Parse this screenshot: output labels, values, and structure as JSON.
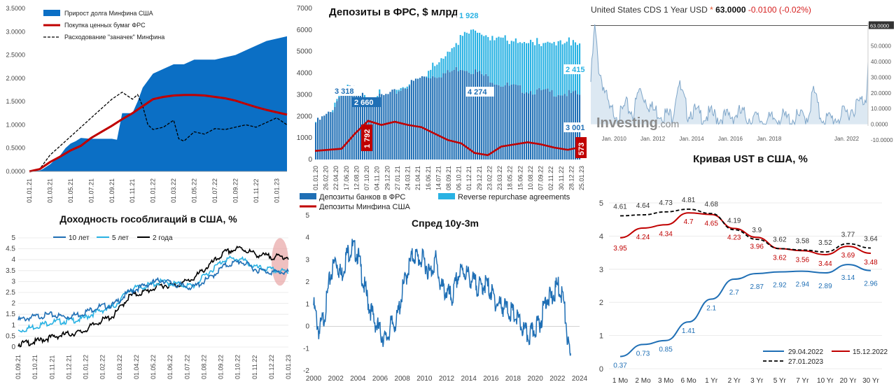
{
  "chart_data": [
    {
      "id": "mof_debt",
      "type": "area",
      "title": "",
      "ylim": [
        0,
        3.5
      ],
      "y_ticks": [
        "0.0000",
        "0.5000",
        "1.0000",
        "1.5000",
        "2.0000",
        "2.5000",
        "3.0000",
        "3.5000"
      ],
      "x_ticks": [
        "01.01.21",
        "01.03.21",
        "01.05.21",
        "01.07.21",
        "01.09.21",
        "01.11.21",
        "01.01.22",
        "01.03.22",
        "01.05.22",
        "01.07.22",
        "01.09.22",
        "01.11.22",
        "01.01.23"
      ],
      "legend": {
        "position": "top-left"
      },
      "colors": {
        "debt": "#0b6fc5",
        "fed": "#c00000",
        "drawdown": "#000000"
      },
      "series": [
        {
          "name": "Прирост долга Минфина США",
          "kind": "area",
          "x": [
            0,
            1,
            1.3,
            2,
            2.5,
            3,
            3.5,
            4,
            4.5,
            5,
            6,
            7,
            8,
            8.5,
            9,
            10,
            10.5,
            11,
            12,
            13,
            14,
            15,
            16,
            17,
            18,
            19,
            20,
            21,
            22,
            23,
            24,
            25
          ],
          "values": [
            0,
            0.02,
            0.05,
            0.15,
            0.25,
            0.35,
            0.5,
            0.6,
            0.65,
            0.72,
            0.7,
            0.7,
            0.7,
            0.68,
            1.25,
            1.25,
            1.5,
            1.8,
            2.1,
            2.2,
            2.3,
            2.3,
            2.4,
            2.4,
            2.4,
            2.45,
            2.5,
            2.6,
            2.7,
            2.8,
            2.85,
            2.9
          ]
        },
        {
          "name": "Покупка ценных бумаг ФРС",
          "kind": "line",
          "x": [
            0,
            1,
            2,
            3,
            4,
            5,
            6,
            7,
            8,
            9,
            10,
            11,
            12,
            13,
            14,
            15,
            16,
            17,
            18,
            19,
            20,
            21,
            22,
            23,
            24,
            25
          ],
          "values": [
            0,
            0.05,
            0.2,
            0.32,
            0.45,
            0.55,
            0.72,
            0.85,
            0.98,
            1.12,
            1.25,
            1.4,
            1.55,
            1.6,
            1.63,
            1.64,
            1.64,
            1.63,
            1.6,
            1.57,
            1.52,
            1.45,
            1.38,
            1.32,
            1.27,
            1.22
          ]
        },
        {
          "name": "Расходование \"заначек\" Минфина",
          "kind": "dashed",
          "x": [
            0,
            1,
            2,
            3,
            4,
            5,
            6,
            7,
            8,
            9,
            10,
            10.5,
            11,
            11.5,
            12,
            13,
            14,
            14.5,
            15,
            16,
            17,
            18,
            19,
            20,
            21,
            22,
            23,
            24,
            25
          ],
          "values": [
            0,
            0.05,
            0.35,
            0.55,
            0.75,
            0.95,
            1.15,
            1.35,
            1.55,
            1.7,
            1.55,
            1.65,
            1.4,
            1.0,
            0.9,
            0.95,
            1.1,
            0.7,
            0.65,
            0.85,
            0.8,
            0.92,
            0.9,
            0.95,
            1.0,
            0.95,
            1.05,
            1.15,
            1.0
          ]
        }
      ]
    },
    {
      "id": "fed_deposits",
      "type": "bar",
      "title": "Депозиты в ФРС, $ млрд",
      "ylim": [
        0,
        7000
      ],
      "y_ticks": [
        "0",
        "1000",
        "2000",
        "3000",
        "4000",
        "5000",
        "6000",
        "7000"
      ],
      "x_ticks": [
        "01.01.20",
        "26.02.20",
        "22.04.20",
        "17.06.20",
        "12.08.20",
        "07.10.20",
        "04.11.20",
        "29.12.20",
        "27.01.21",
        "24.03.21",
        "21.04.21",
        "16.06.21",
        "14.07.21",
        "08.09.21",
        "06.10.21",
        "01.12.21",
        "29.12.21",
        "23.02.22",
        "23.03.22",
        "18.05.22",
        "15.06.22",
        "10.08.22",
        "07.09.22",
        "02.11.22",
        "30.11.22",
        "28.12.22",
        "25.01.23"
      ],
      "labels": [
        "3 318",
        "2 660",
        "1 928",
        "4 274",
        "2 415",
        "3 001",
        "1 792",
        "573"
      ],
      "colors": {
        "banks": "#1f6fb5",
        "rrp": "#29b2e3",
        "treasury": "#c00000"
      },
      "series": [
        {
          "name": "Депозиты банков в ФРС",
          "x": [
            0,
            0.06,
            0.1,
            0.15,
            0.2,
            0.3,
            0.4,
            0.5,
            0.55,
            0.6,
            0.7,
            0.8,
            0.9,
            1
          ],
          "values": [
            1700,
            2200,
            3200,
            3300,
            2700,
            3100,
            3800,
            4000,
            4274,
            4100,
            3500,
            3200,
            3100,
            3001
          ]
        },
        {
          "name": "Reverse repurchase agreements",
          "x": [
            0,
            0.3,
            0.4,
            0.45,
            0.5,
            0.55,
            0.6,
            0.65,
            0.7,
            0.8,
            0.9,
            1
          ],
          "values": [
            0,
            0,
            50,
            500,
            1000,
            1500,
            2000,
            1928,
            2100,
            2200,
            2300,
            2415
          ]
        },
        {
          "name": "Депозиты Минфина США",
          "x": [
            0,
            0.1,
            0.15,
            0.2,
            0.25,
            0.3,
            0.35,
            0.4,
            0.45,
            0.5,
            0.55,
            0.6,
            0.65,
            0.7,
            0.75,
            0.8,
            0.85,
            0.9,
            0.95,
            1
          ],
          "values": [
            400,
            500,
            1200,
            1792,
            1600,
            1750,
            1600,
            1500,
            1200,
            900,
            750,
            300,
            200,
            600,
            700,
            800,
            700,
            550,
            450,
            573
          ]
        }
      ]
    },
    {
      "id": "cds",
      "type": "line",
      "title": "United States CDS 1 Year USD",
      "header": {
        "name": "United States CDS 1 Year USD",
        "star": "*",
        "price": "63.0000",
        "change": "-0.0100",
        "change_pct": "(-0.02%)"
      },
      "brand": {
        "word": "Investing",
        "suffix": ".com"
      },
      "ylim": [
        -10,
        65
      ],
      "y_ticks": [
        "50.0000",
        "40.0000",
        "30.0000",
        "20.0000",
        "10.0000",
        "0.0000",
        "-10.0000"
      ],
      "last_value_label": "63.0000",
      "x_ticks": [
        "Jan. 2010",
        "Jan. 2012",
        "Jan. 2014",
        "Jan. 2016",
        "Jan. 2018",
        "Jan. 2022"
      ],
      "colors": {
        "line": "#7fa6c9",
        "fill": "#dce8f2"
      },
      "series": [
        {
          "name": "",
          "x": [
            2008.8,
            2009,
            2009.2,
            2009.5,
            2009.8,
            2010,
            2010.3,
            2010.6,
            2011,
            2011.3,
            2011.7,
            2012,
            2012.5,
            2013,
            2013.3,
            2013.8,
            2014,
            2014.5,
            2015,
            2015.5,
            2016,
            2016.5,
            2017,
            2017.5,
            2018,
            2018.5,
            2019,
            2019.5,
            2020,
            2020.3,
            2020.6,
            2021,
            2021.5,
            2022,
            2022.5,
            2023,
            2023.1
          ],
          "values": [
            30,
            65,
            40,
            25,
            10,
            12,
            8,
            15,
            10,
            25,
            18,
            12,
            10,
            8,
            30,
            10,
            12,
            8,
            9,
            7,
            8,
            10,
            7,
            6,
            5,
            8,
            6,
            7,
            8,
            25,
            9,
            6,
            7,
            10,
            15,
            20,
            40
          ]
        }
      ]
    },
    {
      "id": "govt_yields",
      "type": "line",
      "title": "Доходность гособлигаций в США, %",
      "ylim": [
        0,
        5
      ],
      "y_ticks": [
        "0",
        "0.5",
        "1",
        "1.5",
        "2",
        "2.5",
        "3",
        "3.5",
        "4",
        "4.5",
        "5"
      ],
      "x_ticks": [
        "01.09.21",
        "01.10.21",
        "01.11.21",
        "01.12.21",
        "01.01.22",
        "01.02.22",
        "01.03.22",
        "01.04.22",
        "01.05.22",
        "01.06.22",
        "01.07.22",
        "01.08.22",
        "01.09.22",
        "01.10.22",
        "01.11.22",
        "01.12.22",
        "01.01.23"
      ],
      "legend": {
        "position": "top"
      },
      "colors": {
        "y10": "#1f6fb5",
        "y5": "#29b2e3",
        "y2": "#000000"
      },
      "series": [
        {
          "name": "10 лет",
          "x": [
            0,
            1,
            2,
            3,
            4,
            5,
            6,
            7,
            8,
            9,
            10,
            11,
            12,
            13,
            14,
            15,
            16,
            17
          ],
          "values": [
            1.3,
            1.45,
            1.55,
            1.45,
            1.6,
            1.9,
            2.0,
            2.6,
            2.9,
            3.15,
            2.9,
            2.8,
            3.2,
            3.8,
            4.0,
            3.6,
            3.5,
            3.5
          ]
        },
        {
          "name": "5 лет",
          "x": [
            0,
            1,
            2,
            3,
            4,
            5,
            6,
            7,
            8,
            9,
            10,
            11,
            12,
            13,
            14,
            15,
            16,
            17
          ],
          "values": [
            0.8,
            1.0,
            1.2,
            1.25,
            1.35,
            1.7,
            1.9,
            2.7,
            2.85,
            3.05,
            2.95,
            2.85,
            3.5,
            4.1,
            4.1,
            3.7,
            3.6,
            3.5
          ]
        },
        {
          "name": "2 года",
          "x": [
            0,
            1,
            2,
            3,
            4,
            5,
            6,
            7,
            8,
            9,
            10,
            11,
            12,
            13,
            14,
            15,
            16,
            17
          ],
          "values": [
            0.2,
            0.3,
            0.5,
            0.65,
            0.75,
            1.2,
            1.5,
            2.4,
            2.6,
            2.9,
            2.9,
            3.2,
            3.8,
            4.4,
            4.6,
            4.3,
            4.2,
            4.2
          ]
        }
      ]
    },
    {
      "id": "spread",
      "type": "line",
      "title": "Спред 10y-3m",
      "ylim": [
        -2,
        5
      ],
      "y_ticks": [
        "5",
        "4",
        "3",
        "2",
        "1",
        "0",
        "-1",
        "-2"
      ],
      "x_ticks": [
        "2000",
        "2002",
        "2004",
        "2006",
        "2008",
        "2010",
        "2012",
        "2014",
        "2016",
        "2018",
        "2020",
        "2022",
        "2024"
      ],
      "colors": {
        "line": "#1f6fb5"
      },
      "series": [
        {
          "name": "",
          "x": [
            2000,
            2000.5,
            2001,
            2001.5,
            2002,
            2002.5,
            2003,
            2003.5,
            2004,
            2004.5,
            2005,
            2005.5,
            2006,
            2006.5,
            2007,
            2007.5,
            2008,
            2008.5,
            2009,
            2009.5,
            2010,
            2010.5,
            2011,
            2011.5,
            2012,
            2012.5,
            2013,
            2013.5,
            2014,
            2014.5,
            2015,
            2015.5,
            2016,
            2016.5,
            2017,
            2017.5,
            2018,
            2018.5,
            2019,
            2019.5,
            2020,
            2020.5,
            2021,
            2021.5,
            2022,
            2022.5,
            2022.8,
            2023,
            2023.2
          ],
          "values": [
            1.2,
            0.0,
            0.8,
            2.5,
            3.3,
            2.5,
            3.5,
            3.8,
            3.5,
            2.2,
            1.2,
            0.5,
            0.0,
            -0.4,
            0.3,
            0.5,
            1.8,
            2.8,
            3.5,
            3.3,
            3.2,
            2.6,
            3.3,
            2.0,
            1.8,
            1.5,
            2.5,
            2.8,
            2.5,
            2.2,
            2.0,
            2.2,
            1.8,
            1.3,
            1.2,
            1.0,
            0.8,
            0.5,
            0.0,
            -0.2,
            0.2,
            0.5,
            1.6,
            1.5,
            2.1,
            1.6,
            0.3,
            -0.8,
            -1.3
          ]
        }
      ]
    },
    {
      "id": "ust_curve",
      "type": "line",
      "title": "Кривая UST в США, %",
      "ylim": [
        0,
        5
      ],
      "y_ticks": [
        "0",
        "1",
        "2",
        "3",
        "4",
        "5"
      ],
      "categories": [
        "1 Mo",
        "2 Mo",
        "3 Mo",
        "6 Mo",
        "1 Yr",
        "2 Yr",
        "3 Yr",
        "5 Yr",
        "7 Yr",
        "10 Yr",
        "20 Yr",
        "30 Yr"
      ],
      "legend": {
        "position": "bottom-right"
      },
      "colors": {
        "apr": "#1f6fb5",
        "dec": "#c00000",
        "jan": "#000000"
      },
      "series": [
        {
          "name": "29.04.2022",
          "values": [
            0.37,
            0.73,
            0.85,
            1.41,
            2.1,
            2.7,
            2.87,
            2.92,
            2.94,
            2.89,
            3.14,
            2.96
          ],
          "labels": [
            "0.37",
            "0.73",
            "0.85",
            "1.41",
            "2.1",
            "2.7",
            "2.87",
            "2.92",
            "2.94",
            "2.89",
            "3.14",
            "2.96"
          ]
        },
        {
          "name": "15.12.2022",
          "values": [
            3.95,
            4.24,
            4.34,
            4.7,
            4.65,
            4.23,
            3.96,
            3.62,
            3.56,
            3.44,
            3.69,
            3.48
          ],
          "labels": [
            "3.95",
            "4.24",
            "4.34",
            "4.7",
            "4.65",
            "4.23",
            "3.96",
            "3.62",
            "3.56",
            "3.44",
            "3.69",
            "3.48"
          ]
        },
        {
          "name": "27.01.2023",
          "values": [
            4.61,
            4.64,
            4.73,
            4.81,
            4.68,
            4.19,
            3.9,
            3.62,
            3.58,
            3.52,
            3.77,
            3.64
          ],
          "labels": [
            "4.61",
            "4.64",
            "4.73",
            "4.81",
            "4.68",
            "4.19",
            "3.9",
            "3.62",
            "3.58",
            "3.52",
            "3.77",
            "3.64"
          ]
        }
      ]
    }
  ]
}
